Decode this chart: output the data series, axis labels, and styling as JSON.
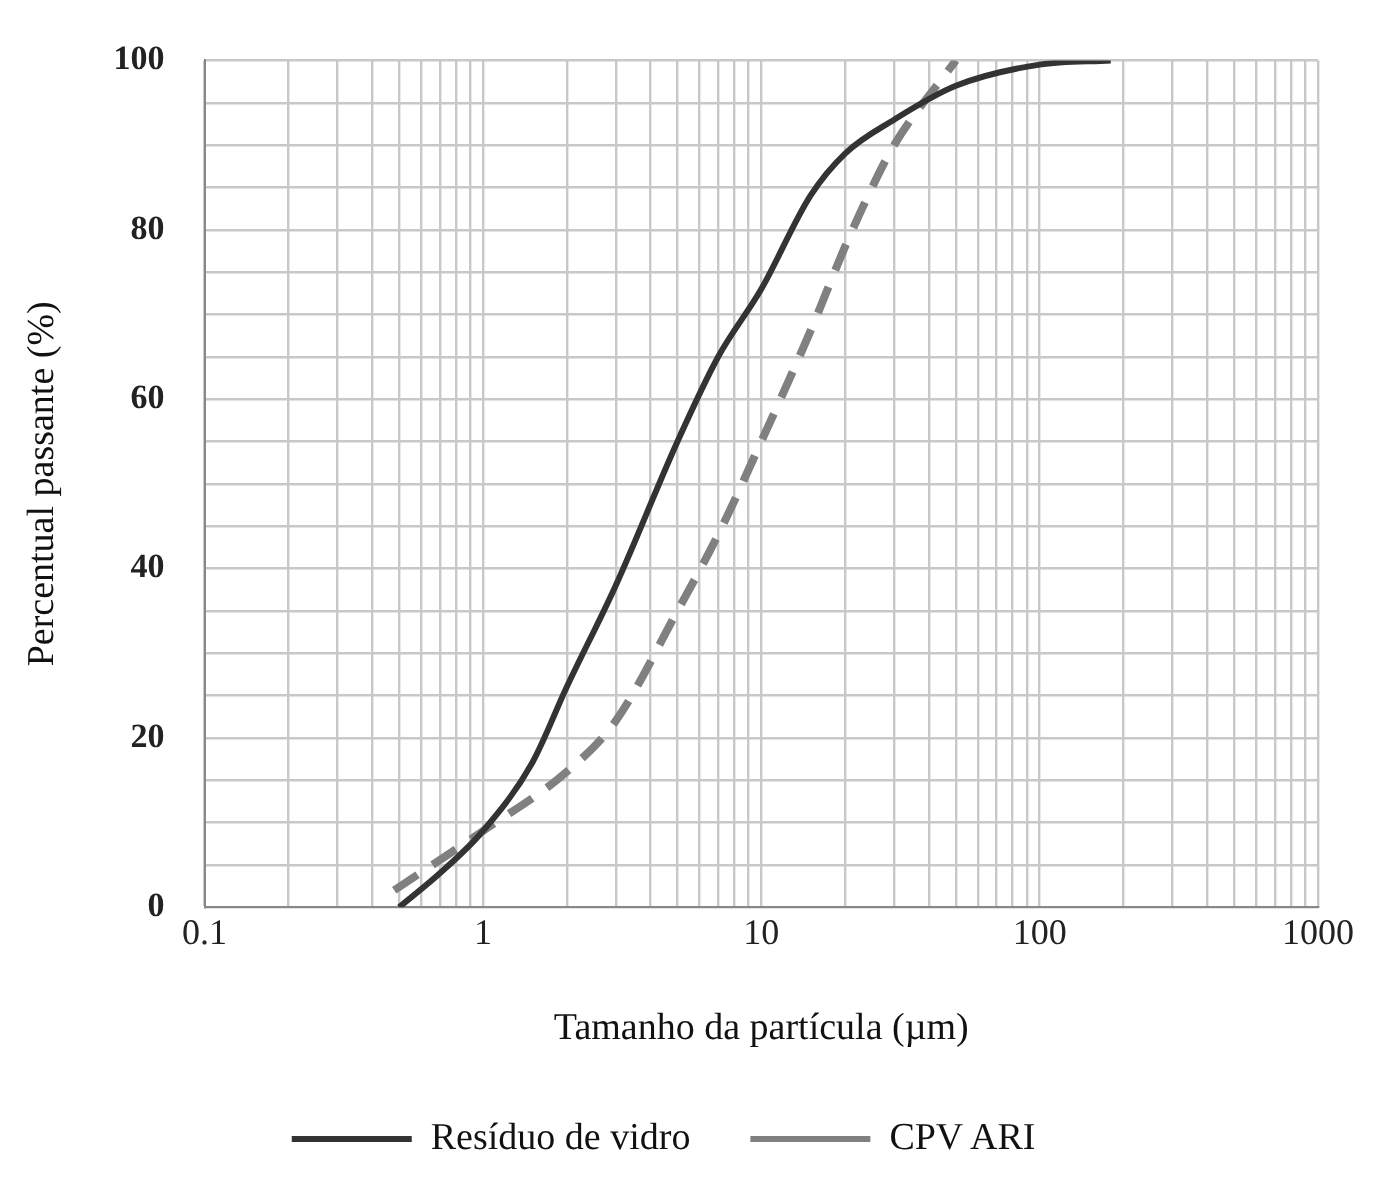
{
  "chart_data": {
    "type": "line",
    "xlabel": "Tamanho da partícula (µm)",
    "ylabel": "Percentual passante (%)",
    "log": "x",
    "xlim": [
      0.1,
      1000
    ],
    "ylim": [
      0,
      100
    ],
    "xticks": [
      0.1,
      {
        "value": 0.2,
        "label": null
      },
      {
        "value": 0.3,
        "label": null
      },
      {
        "value": 0.4,
        "label": null
      },
      {
        "value": 0.5,
        "label": null
      },
      {
        "value": 0.6,
        "label": null
      },
      {
        "value": 0.7,
        "label": null
      },
      {
        "value": 0.8,
        "label": null
      },
      {
        "value": 0.9,
        "label": null
      },
      1,
      {
        "value": 2,
        "label": null
      },
      {
        "value": 3,
        "label": null
      },
      {
        "value": 4,
        "label": null
      },
      {
        "value": 5,
        "label": null
      },
      {
        "value": 6,
        "label": null
      },
      {
        "value": 7,
        "label": null
      },
      {
        "value": 8,
        "label": null
      },
      {
        "value": 9,
        "label": null
      },
      10,
      {
        "value": 20,
        "label": null
      },
      {
        "value": 30,
        "label": null
      },
      {
        "value": 40,
        "label": null
      },
      {
        "value": 50,
        "label": null
      },
      {
        "value": 60,
        "label": null
      },
      {
        "value": 70,
        "label": null
      },
      {
        "value": 80,
        "label": null
      },
      {
        "value": 90,
        "label": null
      },
      100,
      {
        "value": 200,
        "label": null
      },
      {
        "value": 300,
        "label": null
      },
      {
        "value": 400,
        "label": null
      },
      {
        "value": 500,
        "label": null
      },
      {
        "value": 600,
        "label": null
      },
      {
        "value": 700,
        "label": null
      },
      {
        "value": 800,
        "label": null
      },
      {
        "value": 900,
        "label": null
      },
      1000
    ],
    "yticks": [
      0,
      {
        "value": 5,
        "label": null
      },
      {
        "value": 10,
        "label": null
      },
      {
        "value": 15,
        "label": null
      },
      20,
      {
        "value": 25,
        "label": null
      },
      {
        "value": 30,
        "label": null
      },
      {
        "value": 35,
        "label": null
      },
      40,
      {
        "value": 45,
        "label": null
      },
      {
        "value": 50,
        "label": null
      },
      {
        "value": 55,
        "label": null
      },
      60,
      {
        "value": 65,
        "label": null
      },
      {
        "value": 70,
        "label": null
      },
      {
        "value": 75,
        "label": null
      },
      80,
      {
        "value": 85,
        "label": null
      },
      {
        "value": 90,
        "label": null
      },
      {
        "value": 95,
        "label": null
      },
      100
    ],
    "grid": true,
    "legend": "bottom",
    "marker": "none",
    "series": [
      {
        "name": "Resíduo de vidro",
        "color": "#333333",
        "line_style": "solid",
        "x": [
          0.5,
          0.7,
          1,
          1.5,
          2,
          3,
          5,
          7,
          10,
          15,
          20,
          30,
          50,
          100,
          180
        ],
        "values": [
          0,
          4,
          9,
          17,
          26,
          38,
          55,
          65,
          73,
          84,
          89,
          93,
          97,
          99.5,
          100
        ]
      },
      {
        "name": "CPV ARI",
        "color": "#808080",
        "line_style": "dashed",
        "x": [
          0.48,
          1,
          2,
          3,
          5,
          7,
          10,
          15,
          20,
          25,
          30,
          50
        ],
        "values": [
          2,
          9,
          16,
          22,
          35,
          44,
          55,
          68,
          78,
          85,
          90,
          100
        ]
      }
    ]
  }
}
